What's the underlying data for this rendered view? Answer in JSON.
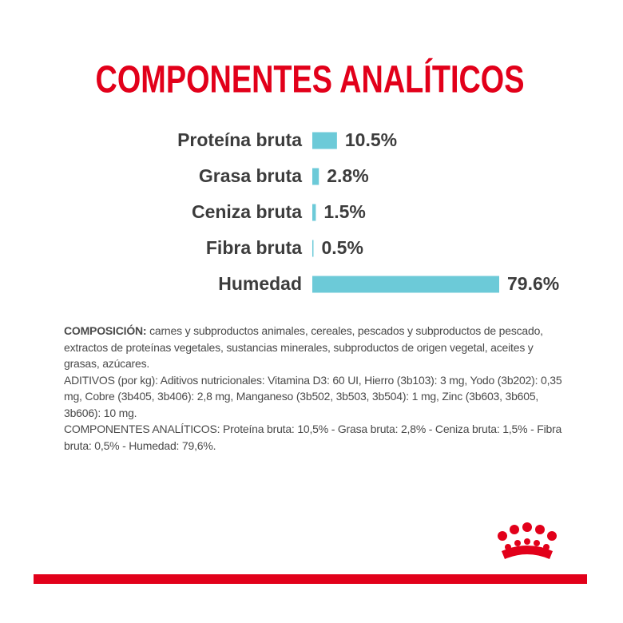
{
  "chart_data": {
    "type": "bar",
    "orientation": "horizontal",
    "title": "COMPONENTES ANALÍTICOS",
    "categories": [
      "Proteína bruta",
      "Grasa bruta",
      "Ceniza bruta",
      "Fibra bruta",
      "Humedad"
    ],
    "values": [
      10.5,
      2.8,
      1.5,
      0.5,
      79.6
    ],
    "value_labels": [
      "10.5%",
      "2.8%",
      "1.5%",
      "0.5%",
      "79.6%"
    ],
    "color": "#6ccad8"
  },
  "composition": {
    "heading": "COMPOSICIÓN:",
    "text": " carnes y subproductos animales, cereales, pescados y subproductos de pescado, extractos de proteínas vegetales, sustancias minerales, subproductos de origen vegetal, aceites y grasas, azúcares.",
    "additives": "ADITIVOS (por kg): Aditivos nutricionales: Vitamina D3: 60 UI, Hierro (3b103): 3 mg, Yodo (3b202): 0,35 mg, Cobre (3b405, 3b406): 2,8 mg, Manganeso (3b502, 3b503, 3b504): 1 mg, Zinc (3b603, 3b605, 3b606): 10 mg.",
    "analytical": "COMPONENTES ANALÍTICOS: Proteína bruta: 10,5% - Grasa bruta: 2,8% - Ceniza bruta: 1,5% - Fibra bruta: 0,5% - Humedad: 79,6%."
  }
}
